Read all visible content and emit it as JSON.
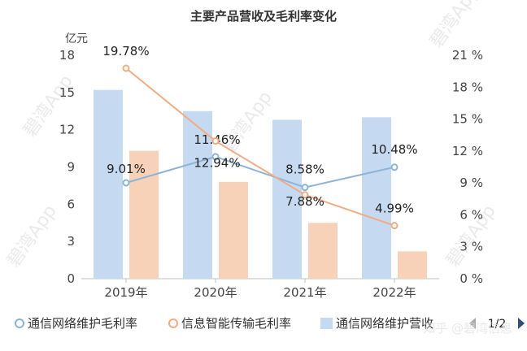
{
  "chart_data": {
    "type": "bar",
    "title": "主要产品营收及毛利率变化",
    "y_left_unit": "亿元",
    "categories": [
      "2019年",
      "2020年",
      "2021年",
      "2022年"
    ],
    "ylim_left": [
      0,
      18
    ],
    "yticks_left": [
      "0",
      "3",
      "6",
      "9",
      "12",
      "15",
      "18"
    ],
    "ylim_right": [
      0,
      21
    ],
    "yticks_right": [
      "0 %",
      "3 %",
      "6 %",
      "9 %",
      "12 %",
      "15 %",
      "18 %",
      "21 %"
    ],
    "bar_series": [
      {
        "name": "通信网络维护营收",
        "values": [
          15.2,
          13.5,
          12.8,
          13.0
        ],
        "color": "#c5d9f1"
      },
      {
        "values": [
          10.3,
          7.8,
          4.5,
          2.2
        ],
        "color": "#f8d2b8"
      }
    ],
    "line_series": [
      {
        "name": "通信网络维护毛利率",
        "values": [
          9.01,
          11.46,
          8.58,
          10.48
        ],
        "labels": [
          "9.01%",
          "11.46%",
          "8.58%",
          "10.48%"
        ],
        "color": "#8db3d9"
      },
      {
        "name": "信息智能传输毛利率",
        "values": [
          19.78,
          12.94,
          7.88,
          4.99
        ],
        "labels": [
          "19.78%",
          "12.94%",
          "7.88%",
          "4.99%"
        ],
        "color": "#f0ac84"
      }
    ],
    "grid": false,
    "legend_position": "bottom"
  },
  "legend": {
    "items": [
      "通信网络维护毛利率",
      "信息智能传输毛利率",
      "通信网络维护营收"
    ],
    "page": "1/2"
  },
  "watermark": {
    "main": "碧湾App",
    "credit": "知乎 @碧湾信息"
  },
  "colors": {
    "bar_blue": "#c5d9f1",
    "bar_orange": "#f8d2b8",
    "line_blue": "#8db3d9",
    "line_orange": "#f0ac84"
  }
}
